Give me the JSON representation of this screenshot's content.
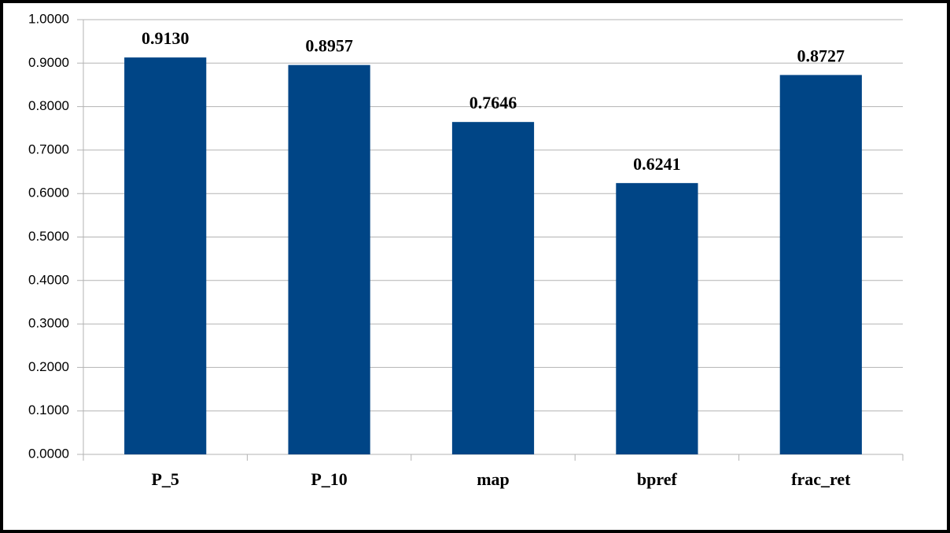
{
  "chart_data": {
    "type": "bar",
    "categories": [
      "P_5",
      "P_10",
      "map",
      "bpref",
      "frac_ret"
    ],
    "values": [
      0.913,
      0.8957,
      0.7646,
      0.6241,
      0.8727
    ],
    "value_labels": [
      "0.9130",
      "0.8957",
      "0.7646",
      "0.6241",
      "0.8727"
    ],
    "color": "#004586",
    "ylim": [
      0,
      1
    ],
    "yticks": [
      {
        "value": 0,
        "label": "0.0000"
      },
      {
        "value": 0.1,
        "label": "0.1000"
      },
      {
        "value": 0.2,
        "label": "0.2000"
      },
      {
        "value": 0.3,
        "label": "0.3000"
      },
      {
        "value": 0.4,
        "label": "0.4000"
      },
      {
        "value": 0.5,
        "label": "0.5000"
      },
      {
        "value": 0.6,
        "label": "0.6000"
      },
      {
        "value": 0.7,
        "label": "0.7000"
      },
      {
        "value": 0.8,
        "label": "0.8000"
      },
      {
        "value": 0.9,
        "label": "0.9000"
      },
      {
        "value": 1,
        "label": "1.0000"
      }
    ],
    "grid": true
  }
}
